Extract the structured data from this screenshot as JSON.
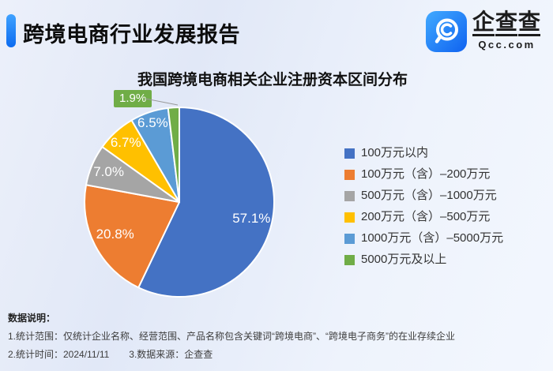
{
  "header": {
    "title": "跨境电商行业发展报告",
    "logo": {
      "brand_chars": [
        "企",
        "查",
        "查"
      ],
      "domain": "Qcc.com",
      "icon": "qichacha-magnifier-icon"
    },
    "accent_color": "#1677FF"
  },
  "chart_data": {
    "type": "pie",
    "title": "我国跨境电商相关企业注册资本区间分布",
    "labels": [
      "100万元以内",
      "100万元（含）–200万元",
      "500万元（含）–1000万元",
      "200万元（含）–500万元",
      "1000万元（含）–5000万元",
      "5000万元及以上"
    ],
    "values": [
      57.1,
      20.8,
      7.0,
      6.7,
      6.5,
      1.9
    ],
    "display_labels": [
      "57.1%",
      "20.8%",
      "7.0%",
      "6.7%",
      "6.5%",
      "1.9%"
    ],
    "colors": [
      "#4472C4",
      "#ED7D31",
      "#A5A5A5",
      "#FFC000",
      "#5B9BD5",
      "#70AD47"
    ],
    "unit": "%",
    "start_angle_deg": 0,
    "direction": "clockwise",
    "legend_position": "right",
    "slice_border_color": "#FFFFFF",
    "callout": {
      "index": 5,
      "label": "1.9%"
    }
  },
  "notes": {
    "heading": "数据说明：",
    "line1": "1.统计范围：仅统计企业名称、经营范围、产品名称包含关键词“跨境电商”、“跨境电子商务”的在业存续企业",
    "line2_time": "2.统计时间：2024/11/11",
    "line2_source": "3.数据来源：企查查"
  }
}
